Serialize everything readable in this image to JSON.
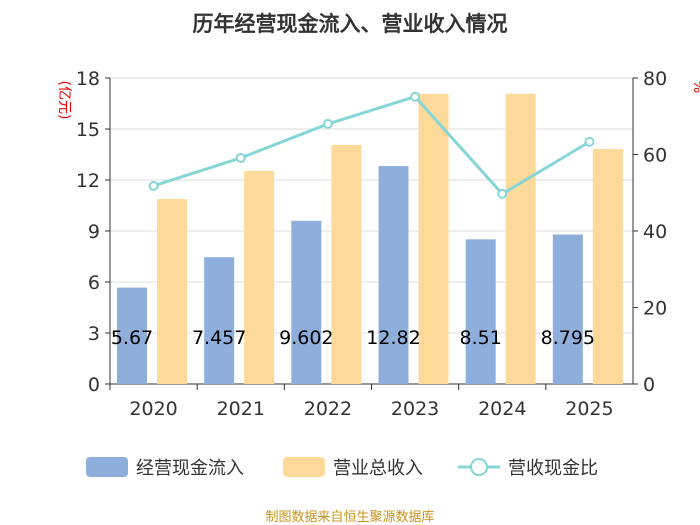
{
  "title": "历年经营现金流入、营业收入情况",
  "source": "制图数据来自恒生聚源数据库",
  "chart_data": {
    "type": "bar",
    "categories": [
      "2020",
      "2021",
      "2022",
      "2023",
      "2024",
      "2025"
    ],
    "left_axis": {
      "label": "(亿元)",
      "min": 0,
      "max": 18,
      "ticks": [
        0,
        3,
        6,
        9,
        12,
        15,
        18
      ]
    },
    "right_axis": {
      "label": "%",
      "min": 0,
      "max": 80,
      "ticks": [
        0,
        20,
        40,
        60,
        80
      ]
    },
    "series": [
      {
        "name": "经营现金流入",
        "type": "bar",
        "axis": "left",
        "color": "#8eaedb",
        "values": [
          5.67,
          7.457,
          9.602,
          12.82,
          8.51,
          8.795
        ],
        "labels": [
          "5.67",
          "7.457",
          "9.602",
          "12.82",
          "8.51",
          "8.795"
        ]
      },
      {
        "name": "营业总收入",
        "type": "bar",
        "axis": "left",
        "color": "#fdd99a",
        "values": [
          10.88,
          12.53,
          14.06,
          17.07,
          17.07,
          13.82
        ]
      },
      {
        "name": "营收现金比",
        "type": "line",
        "axis": "right",
        "color": "#86d6d8",
        "values": [
          51.8,
          59.1,
          68.0,
          75.1,
          49.7,
          63.3
        ]
      }
    ],
    "grid": true,
    "legend_position": "bottom"
  }
}
